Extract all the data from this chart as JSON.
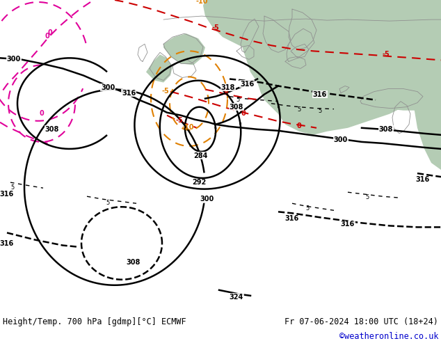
{
  "title_left": "Height/Temp. 700 hPa [gdmp][°C] ECMWF",
  "title_right": "Fr 07-06-2024 18:00 UTC (18+24)",
  "watermark": "©weatheronline.co.uk",
  "fig_width": 6.34,
  "fig_height": 4.9,
  "dpi": 100,
  "bottom_text_color": "#000000",
  "watermark_color": "#0000cc",
  "land_gray": "#c8c8c8",
  "land_green": "#b4ccb4",
  "sea_gray": "#d8d8d8",
  "pink": "#e0009a",
  "red": "#cc0000",
  "orange": "#e08000",
  "black": "#000000"
}
